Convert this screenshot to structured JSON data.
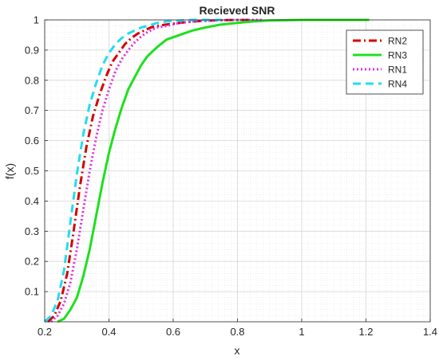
{
  "chart_data": {
    "type": "line",
    "title": "Recieved SNR",
    "xlabel": "x",
    "ylabel": "f(x)",
    "xlim": [
      0.2,
      1.4
    ],
    "ylim": [
      0,
      1
    ],
    "xticks": [
      0.2,
      0.4,
      0.6,
      0.8,
      1,
      1.2,
      1.4
    ],
    "yticks": [
      0.1,
      0.2,
      0.3,
      0.4,
      0.5,
      0.6,
      0.7,
      0.8,
      0.9,
      1
    ],
    "grid": true,
    "minor_grid": true,
    "legend_position": "top-right",
    "series": [
      {
        "name": "RN2",
        "color": "#d40000",
        "style": "dash-dot",
        "x": [
          0.21,
          0.23,
          0.25,
          0.27,
          0.29,
          0.31,
          0.33,
          0.35,
          0.37,
          0.39,
          0.41,
          0.43,
          0.45,
          0.47,
          0.49,
          0.51,
          0.53,
          0.55,
          0.58,
          0.62,
          0.66,
          0.7,
          0.75,
          0.8,
          0.85
        ],
        "y": [
          0.0,
          0.02,
          0.07,
          0.16,
          0.3,
          0.45,
          0.58,
          0.68,
          0.75,
          0.81,
          0.86,
          0.89,
          0.92,
          0.94,
          0.955,
          0.965,
          0.975,
          0.98,
          0.985,
          0.99,
          0.995,
          0.997,
          0.999,
          1.0,
          1.0
        ]
      },
      {
        "name": "RN3",
        "color": "#1ee01e",
        "style": "solid",
        "x": [
          0.24,
          0.26,
          0.28,
          0.3,
          0.32,
          0.34,
          0.36,
          0.38,
          0.4,
          0.42,
          0.44,
          0.46,
          0.48,
          0.5,
          0.52,
          0.55,
          0.58,
          0.62,
          0.66,
          0.7,
          0.75,
          0.8,
          0.85,
          0.9,
          1.0,
          1.21
        ],
        "y": [
          0.0,
          0.01,
          0.04,
          0.08,
          0.15,
          0.24,
          0.35,
          0.46,
          0.56,
          0.64,
          0.71,
          0.77,
          0.81,
          0.85,
          0.88,
          0.91,
          0.935,
          0.95,
          0.965,
          0.975,
          0.985,
          0.99,
          0.995,
          0.998,
          1.0,
          1.0
        ]
      },
      {
        "name": "RN1",
        "color": "#e02ee0",
        "style": "dotted",
        "x": [
          0.22,
          0.24,
          0.26,
          0.28,
          0.3,
          0.32,
          0.34,
          0.36,
          0.38,
          0.4,
          0.42,
          0.44,
          0.46,
          0.48,
          0.5,
          0.52,
          0.55,
          0.58,
          0.62,
          0.66,
          0.7,
          0.75,
          0.8,
          0.88
        ],
        "y": [
          0.0,
          0.02,
          0.06,
          0.13,
          0.24,
          0.37,
          0.5,
          0.61,
          0.7,
          0.77,
          0.83,
          0.87,
          0.9,
          0.925,
          0.945,
          0.96,
          0.975,
          0.98,
          0.99,
          0.995,
          0.997,
          0.999,
          1.0,
          1.0
        ]
      },
      {
        "name": "RN4",
        "color": "#22dcf2",
        "style": "dashed",
        "x": [
          0.2,
          0.22,
          0.24,
          0.26,
          0.28,
          0.3,
          0.32,
          0.34,
          0.36,
          0.38,
          0.4,
          0.42,
          0.44,
          0.46,
          0.48,
          0.5,
          0.52,
          0.55,
          0.58,
          0.62,
          0.66,
          0.7,
          0.75
        ],
        "y": [
          0.0,
          0.02,
          0.07,
          0.17,
          0.33,
          0.49,
          0.62,
          0.72,
          0.79,
          0.85,
          0.89,
          0.92,
          0.94,
          0.955,
          0.965,
          0.975,
          0.98,
          0.99,
          0.995,
          0.998,
          1.0,
          1.0,
          1.0
        ]
      }
    ]
  }
}
